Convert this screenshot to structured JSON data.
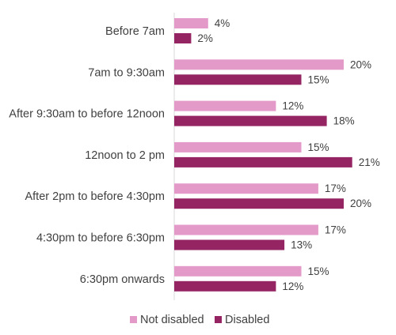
{
  "chart_data": {
    "type": "bar",
    "orientation": "horizontal",
    "categories": [
      "Before 7am",
      "7am to 9:30am",
      "After 9:30am to before 12noon",
      "12noon to 2 pm",
      "After 2pm to before 4:30pm",
      "4:30pm to before 6:30pm",
      "6:30pm onwards"
    ],
    "series": [
      {
        "name": "Not disabled",
        "color": "#e39ac8",
        "values": [
          4,
          20,
          12,
          15,
          17,
          17,
          15
        ]
      },
      {
        "name": "Disabled",
        "color": "#952463",
        "values": [
          2,
          15,
          18,
          21,
          20,
          13,
          12
        ]
      }
    ],
    "value_suffix": "%",
    "xlim": [
      0,
      25
    ],
    "grid": false,
    "legend_position": "bottom"
  }
}
